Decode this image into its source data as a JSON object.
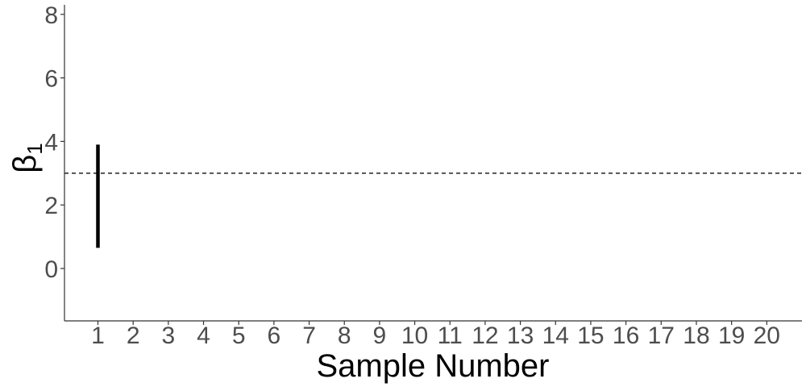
{
  "chart_data": {
    "type": "errorbar",
    "xlabel": "Sample Number",
    "ylabel": "β",
    "ylabel_subscript": "1",
    "xlim": [
      0.05,
      21.0
    ],
    "ylim": [
      -1.65,
      8.3
    ],
    "x_ticks": [
      "1",
      "2",
      "3",
      "4",
      "5",
      "6",
      "7",
      "8",
      "9",
      "10",
      "11",
      "12",
      "13",
      "14",
      "15",
      "16",
      "17",
      "18",
      "19",
      "20"
    ],
    "y_ticks": [
      "0",
      "2",
      "4",
      "6",
      "8"
    ],
    "reference_line": {
      "y": 3,
      "style": "dashed"
    },
    "intervals": [
      {
        "x": 1,
        "low": 0.65,
        "high": 3.9
      }
    ],
    "grid": false,
    "colors": {
      "interval": "#000000",
      "reference": "#333333",
      "axis": "#333333",
      "tick_text": "#4d4d4d"
    }
  }
}
